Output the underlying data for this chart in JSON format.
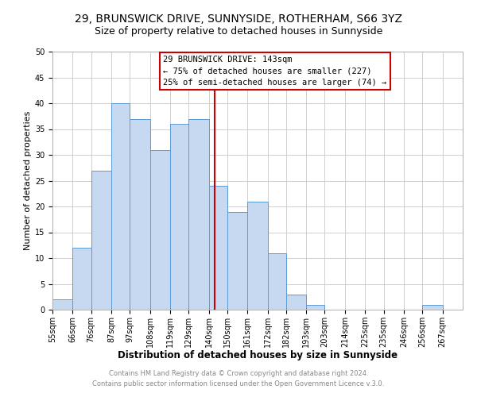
{
  "title": "29, BRUNSWICK DRIVE, SUNNYSIDE, ROTHERHAM, S66 3YZ",
  "subtitle": "Size of property relative to detached houses in Sunnyside",
  "xlabel": "Distribution of detached houses by size in Sunnyside",
  "ylabel": "Number of detached properties",
  "bar_left_edges": [
    55,
    66,
    76,
    87,
    97,
    108,
    119,
    129,
    140,
    150,
    161,
    172,
    182,
    193,
    203,
    214,
    225,
    235,
    246,
    256
  ],
  "bar_heights": [
    2,
    12,
    27,
    40,
    37,
    31,
    36,
    37,
    24,
    19,
    21,
    11,
    3,
    1,
    0,
    0,
    0,
    0,
    0,
    1
  ],
  "bar_widths": [
    11,
    10,
    11,
    10,
    11,
    11,
    10,
    11,
    10,
    11,
    11,
    10,
    11,
    10,
    11,
    11,
    10,
    11,
    10,
    11
  ],
  "tick_labels": [
    "55sqm",
    "66sqm",
    "76sqm",
    "87sqm",
    "97sqm",
    "108sqm",
    "119sqm",
    "129sqm",
    "140sqm",
    "150sqm",
    "161sqm",
    "172sqm",
    "182sqm",
    "193sqm",
    "203sqm",
    "214sqm",
    "225sqm",
    "235sqm",
    "246sqm",
    "256sqm",
    "267sqm"
  ],
  "tick_positions": [
    55,
    66,
    76,
    87,
    97,
    108,
    119,
    129,
    140,
    150,
    161,
    172,
    182,
    193,
    203,
    214,
    225,
    235,
    246,
    256,
    267
  ],
  "bar_color": "#c6d9f1",
  "bar_edge_color": "#5b9bd5",
  "vline_x": 143,
  "vline_color": "#cc0000",
  "ylim": [
    0,
    50
  ],
  "xlim": [
    55,
    278
  ],
  "annotation_title": "29 BRUNSWICK DRIVE: 143sqm",
  "annotation_line1": "← 75% of detached houses are smaller (227)",
  "annotation_line2": "25% of semi-detached houses are larger (74) →",
  "footer1": "Contains HM Land Registry data © Crown copyright and database right 2024.",
  "footer2": "Contains public sector information licensed under the Open Government Licence v.3.0.",
  "title_fontsize": 10,
  "subtitle_fontsize": 9,
  "xlabel_fontsize": 8.5,
  "ylabel_fontsize": 8,
  "tick_fontsize": 7,
  "footer_fontsize": 6,
  "ann_fontsize": 7.5
}
